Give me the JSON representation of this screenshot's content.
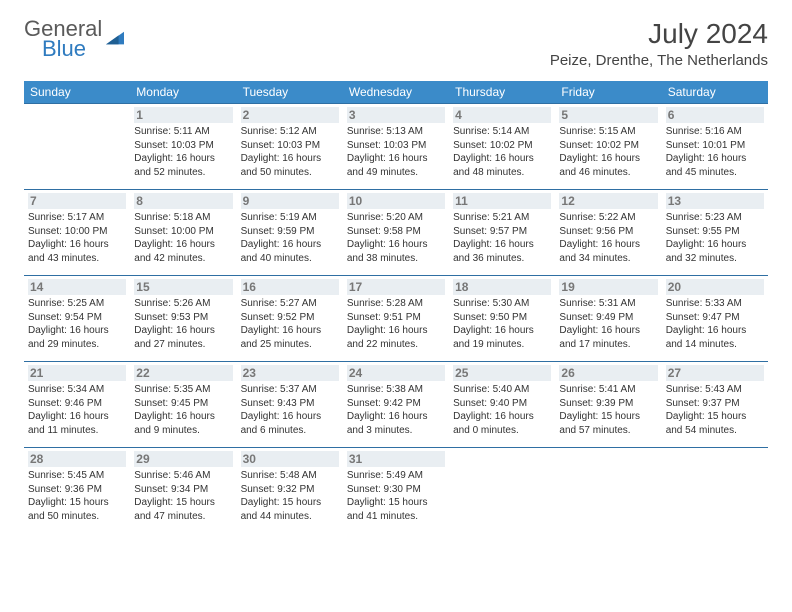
{
  "logo": {
    "part1": "General",
    "part2": "Blue"
  },
  "title": "July 2024",
  "location": "Peize, Drenthe, The Netherlands",
  "colors": {
    "header_bg": "#3b8bc9",
    "header_text": "#ffffff",
    "row_border": "#2f6fa3",
    "daynum_bg": "#e9eef2",
    "daynum_text": "#777777",
    "body_text": "#333333",
    "logo_gray": "#5a5a5a",
    "logo_blue": "#2f7bbf"
  },
  "day_names": [
    "Sunday",
    "Monday",
    "Tuesday",
    "Wednesday",
    "Thursday",
    "Friday",
    "Saturday"
  ],
  "weeks": [
    [
      null,
      {
        "n": "1",
        "sunrise": "5:11 AM",
        "sunset": "10:03 PM",
        "daylight": "16 hours and 52 minutes."
      },
      {
        "n": "2",
        "sunrise": "5:12 AM",
        "sunset": "10:03 PM",
        "daylight": "16 hours and 50 minutes."
      },
      {
        "n": "3",
        "sunrise": "5:13 AM",
        "sunset": "10:03 PM",
        "daylight": "16 hours and 49 minutes."
      },
      {
        "n": "4",
        "sunrise": "5:14 AM",
        "sunset": "10:02 PM",
        "daylight": "16 hours and 48 minutes."
      },
      {
        "n": "5",
        "sunrise": "5:15 AM",
        "sunset": "10:02 PM",
        "daylight": "16 hours and 46 minutes."
      },
      {
        "n": "6",
        "sunrise": "5:16 AM",
        "sunset": "10:01 PM",
        "daylight": "16 hours and 45 minutes."
      }
    ],
    [
      {
        "n": "7",
        "sunrise": "5:17 AM",
        "sunset": "10:00 PM",
        "daylight": "16 hours and 43 minutes."
      },
      {
        "n": "8",
        "sunrise": "5:18 AM",
        "sunset": "10:00 PM",
        "daylight": "16 hours and 42 minutes."
      },
      {
        "n": "9",
        "sunrise": "5:19 AM",
        "sunset": "9:59 PM",
        "daylight": "16 hours and 40 minutes."
      },
      {
        "n": "10",
        "sunrise": "5:20 AM",
        "sunset": "9:58 PM",
        "daylight": "16 hours and 38 minutes."
      },
      {
        "n": "11",
        "sunrise": "5:21 AM",
        "sunset": "9:57 PM",
        "daylight": "16 hours and 36 minutes."
      },
      {
        "n": "12",
        "sunrise": "5:22 AM",
        "sunset": "9:56 PM",
        "daylight": "16 hours and 34 minutes."
      },
      {
        "n": "13",
        "sunrise": "5:23 AM",
        "sunset": "9:55 PM",
        "daylight": "16 hours and 32 minutes."
      }
    ],
    [
      {
        "n": "14",
        "sunrise": "5:25 AM",
        "sunset": "9:54 PM",
        "daylight": "16 hours and 29 minutes."
      },
      {
        "n": "15",
        "sunrise": "5:26 AM",
        "sunset": "9:53 PM",
        "daylight": "16 hours and 27 minutes."
      },
      {
        "n": "16",
        "sunrise": "5:27 AM",
        "sunset": "9:52 PM",
        "daylight": "16 hours and 25 minutes."
      },
      {
        "n": "17",
        "sunrise": "5:28 AM",
        "sunset": "9:51 PM",
        "daylight": "16 hours and 22 minutes."
      },
      {
        "n": "18",
        "sunrise": "5:30 AM",
        "sunset": "9:50 PM",
        "daylight": "16 hours and 19 minutes."
      },
      {
        "n": "19",
        "sunrise": "5:31 AM",
        "sunset": "9:49 PM",
        "daylight": "16 hours and 17 minutes."
      },
      {
        "n": "20",
        "sunrise": "5:33 AM",
        "sunset": "9:47 PM",
        "daylight": "16 hours and 14 minutes."
      }
    ],
    [
      {
        "n": "21",
        "sunrise": "5:34 AM",
        "sunset": "9:46 PM",
        "daylight": "16 hours and 11 minutes."
      },
      {
        "n": "22",
        "sunrise": "5:35 AM",
        "sunset": "9:45 PM",
        "daylight": "16 hours and 9 minutes."
      },
      {
        "n": "23",
        "sunrise": "5:37 AM",
        "sunset": "9:43 PM",
        "daylight": "16 hours and 6 minutes."
      },
      {
        "n": "24",
        "sunrise": "5:38 AM",
        "sunset": "9:42 PM",
        "daylight": "16 hours and 3 minutes."
      },
      {
        "n": "25",
        "sunrise": "5:40 AM",
        "sunset": "9:40 PM",
        "daylight": "16 hours and 0 minutes."
      },
      {
        "n": "26",
        "sunrise": "5:41 AM",
        "sunset": "9:39 PM",
        "daylight": "15 hours and 57 minutes."
      },
      {
        "n": "27",
        "sunrise": "5:43 AM",
        "sunset": "9:37 PM",
        "daylight": "15 hours and 54 minutes."
      }
    ],
    [
      {
        "n": "28",
        "sunrise": "5:45 AM",
        "sunset": "9:36 PM",
        "daylight": "15 hours and 50 minutes."
      },
      {
        "n": "29",
        "sunrise": "5:46 AM",
        "sunset": "9:34 PM",
        "daylight": "15 hours and 47 minutes."
      },
      {
        "n": "30",
        "sunrise": "5:48 AM",
        "sunset": "9:32 PM",
        "daylight": "15 hours and 44 minutes."
      },
      {
        "n": "31",
        "sunrise": "5:49 AM",
        "sunset": "9:30 PM",
        "daylight": "15 hours and 41 minutes."
      },
      null,
      null,
      null
    ]
  ],
  "labels": {
    "sunrise": "Sunrise:",
    "sunset": "Sunset:",
    "daylight": "Daylight:"
  }
}
